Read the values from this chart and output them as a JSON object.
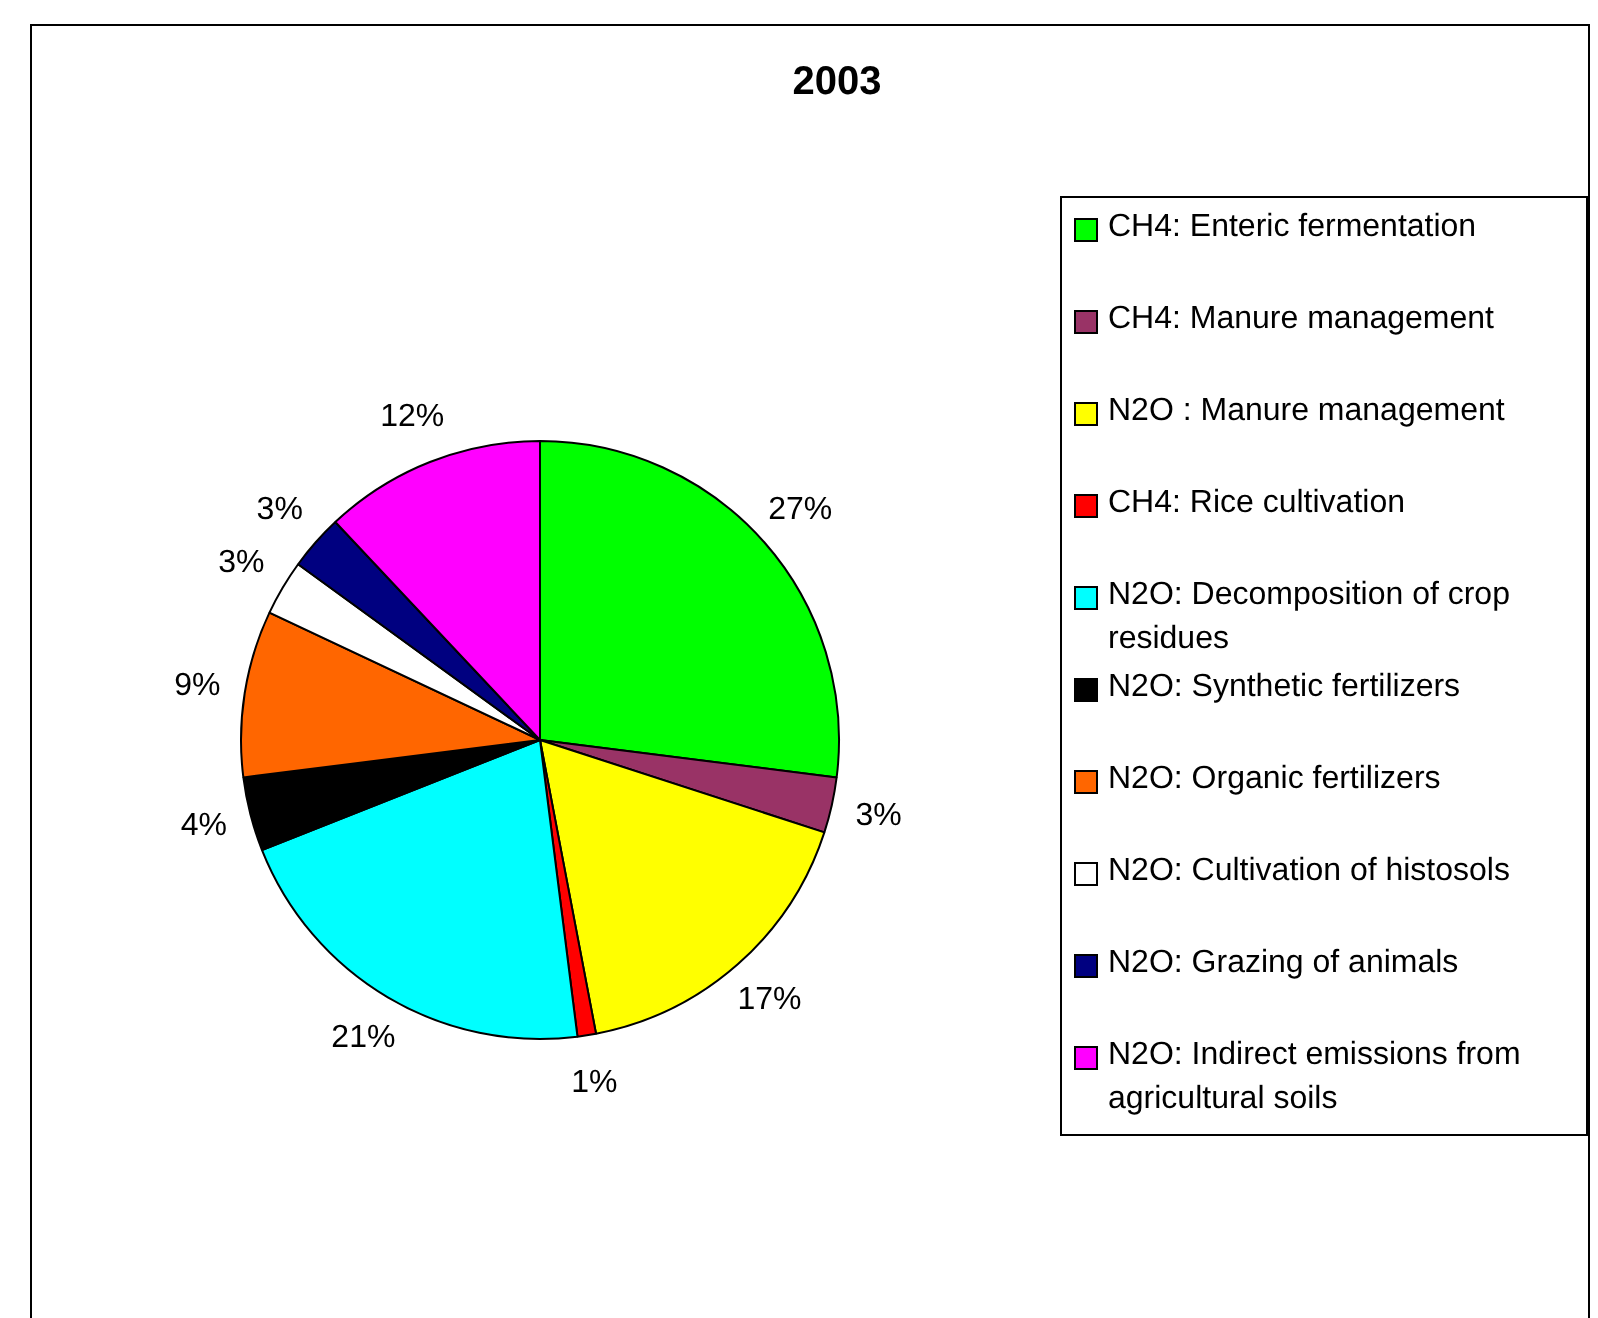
{
  "chart_data": {
    "type": "pie",
    "title": "2003",
    "categories": [
      "CH4: Enteric fermentation",
      "CH4: Manure management",
      "N2O : Manure management",
      "CH4: Rice cultivation",
      "N2O: Decomposition of crop residues",
      "N2O: Synthetic fertilizers",
      "N2O: Organic fertilizers",
      "N2O: Cultivation of histosols",
      "N2O: Grazing of animals",
      "N2O: Indirect emissions from agricultural soils"
    ],
    "values": [
      27,
      3,
      17,
      1,
      21,
      4,
      9,
      3,
      3,
      12
    ],
    "value_labels": [
      "27%",
      "3%",
      "17%",
      "1%",
      "21%",
      "4%",
      "9%",
      "3%",
      "3%",
      "12%"
    ],
    "colors": [
      "#00ff00",
      "#993366",
      "#ffff00",
      "#ff0000",
      "#00ffff",
      "#000000",
      "#ff6600",
      "#ffffff",
      "#000080",
      "#ff00ff"
    ],
    "legend": "right"
  }
}
